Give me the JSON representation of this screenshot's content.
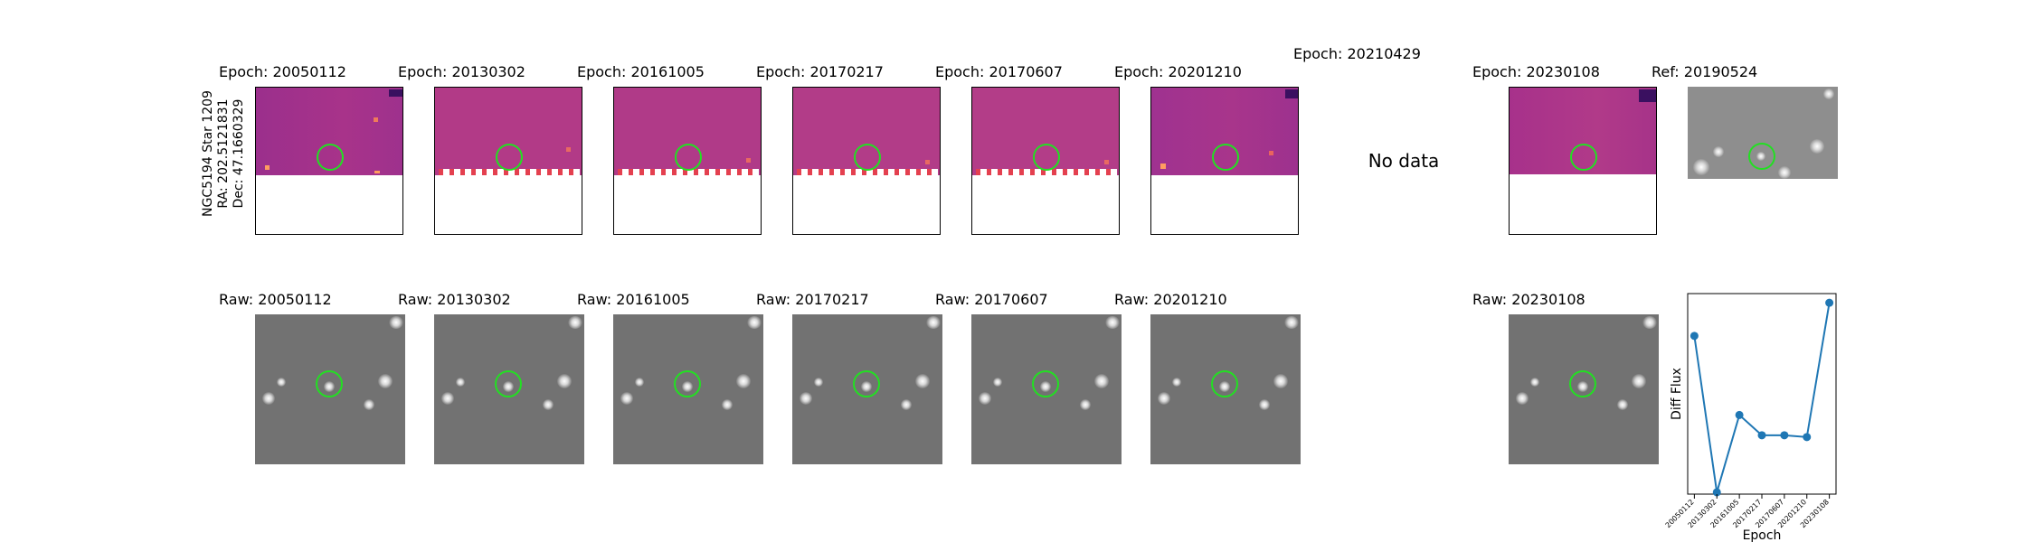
{
  "target": {
    "line1": "NGC5194 Star 1209",
    "line2": "RA: 202.5121831",
    "line3": "Dec: 47.1660329"
  },
  "diff_panels": [
    {
      "title": "Epoch: 20050112",
      "has_data": true
    },
    {
      "title": "Epoch: 20130302",
      "has_data": true
    },
    {
      "title": "Epoch: 20161005",
      "has_data": true
    },
    {
      "title": "Epoch: 20170217",
      "has_data": true
    },
    {
      "title": "Epoch: 20170607",
      "has_data": true
    },
    {
      "title": "Epoch: 20201210",
      "has_data": true
    },
    {
      "title": "Epoch: 20210429",
      "has_data": false,
      "no_data_text": "No data"
    },
    {
      "title": "Epoch: 20230108",
      "has_data": true
    }
  ],
  "reference": {
    "title": "Ref: 20190524"
  },
  "raw_panels": [
    {
      "title": "Raw: 20050112"
    },
    {
      "title": "Raw: 20130302"
    },
    {
      "title": "Raw: 20161005"
    },
    {
      "title": "Raw: 20170217"
    },
    {
      "title": "Raw: 20170607"
    },
    {
      "title": "Raw: 20201210"
    },
    {
      "title": "Raw: 20230108"
    }
  ],
  "colors": {
    "marker": "#22e022",
    "line": "#1f77b4",
    "diff_cmap_mid": "#b33d88",
    "raw_background": "#727272"
  },
  "chart_data": {
    "type": "line",
    "x": [
      "20050112",
      "20130302",
      "20161005",
      "20170217",
      "20170607",
      "20201210",
      "20230108"
    ],
    "series": [
      {
        "values": [
          0.8,
          -0.05,
          0.37,
          0.26,
          0.26,
          0.25,
          0.98
        ]
      }
    ],
    "xlabel": "Epoch",
    "ylabel": "Diff Flux",
    "ylim": [
      -0.06,
      1.03
    ],
    "yticks_visible": false,
    "grid": false,
    "marker": "circle"
  }
}
